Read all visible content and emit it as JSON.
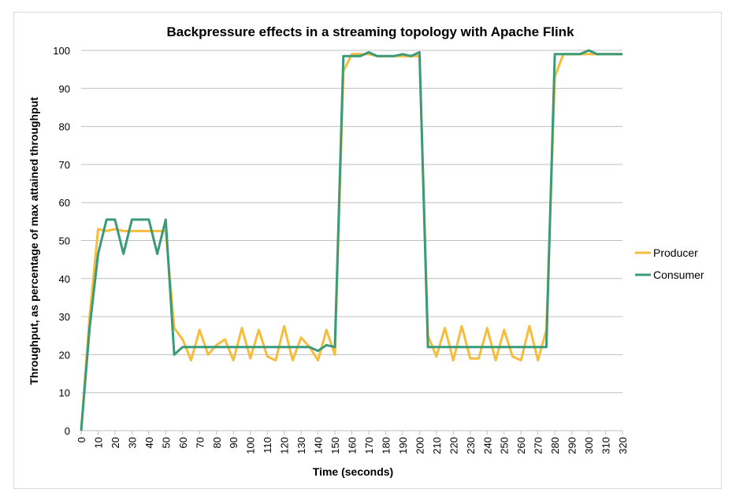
{
  "chart_data": {
    "type": "line",
    "title": "Backpressure effects in a streaming topology with Apache Flink",
    "xlabel": "Time (seconds)",
    "ylabel": "Throughput, as percentage of max attained throughput",
    "xlim": [
      0,
      320
    ],
    "ylim": [
      0,
      100
    ],
    "y_ticks": [
      0,
      10,
      20,
      30,
      40,
      50,
      60,
      70,
      80,
      90,
      100
    ],
    "x_ticks": [
      0,
      10,
      20,
      30,
      40,
      50,
      60,
      70,
      80,
      90,
      100,
      110,
      120,
      130,
      140,
      150,
      160,
      170,
      180,
      190,
      200,
      210,
      220,
      230,
      240,
      250,
      260,
      270,
      280,
      290,
      300,
      310,
      320
    ],
    "grid": "horizontal",
    "legend_position": "right",
    "x": [
      0,
      5,
      10,
      15,
      20,
      25,
      30,
      35,
      40,
      45,
      50,
      55,
      60,
      65,
      70,
      75,
      80,
      85,
      90,
      95,
      100,
      105,
      110,
      115,
      120,
      125,
      130,
      135,
      140,
      145,
      150,
      155,
      160,
      165,
      170,
      175,
      180,
      185,
      190,
      195,
      200,
      205,
      210,
      215,
      220,
      225,
      230,
      235,
      240,
      245,
      250,
      255,
      260,
      265,
      270,
      275,
      280,
      285,
      290,
      295,
      300,
      305,
      310,
      315,
      320
    ],
    "series": [
      {
        "name": "Producer",
        "color": "#f6bd3c",
        "values": [
          0,
          30,
          53,
          52.5,
          53,
          52.5,
          52.5,
          52.5,
          52.5,
          52.5,
          52.5,
          27,
          24,
          18.5,
          26.5,
          20,
          22.5,
          24,
          18.5,
          27,
          19,
          26.5,
          19.5,
          18.5,
          27.5,
          18.5,
          24.5,
          22,
          18.5,
          26.5,
          20,
          94.5,
          99,
          99,
          99,
          98.5,
          98.5,
          98.5,
          98.5,
          98.5,
          98.5,
          25,
          19.5,
          27,
          18.5,
          27.5,
          19,
          19,
          27,
          18.5,
          26.5,
          19.5,
          18.5,
          27.5,
          18.5,
          26.5,
          93,
          99,
          99,
          99,
          99,
          99,
          99,
          99,
          99
        ]
      },
      {
        "name": "Consumer",
        "color": "#3a9a79",
        "values": [
          0,
          27,
          46.5,
          55.5,
          55.5,
          46.5,
          55.5,
          55.5,
          55.5,
          46.5,
          55.5,
          20,
          22,
          22,
          22,
          22,
          22,
          22,
          22,
          22,
          22,
          22,
          22,
          22,
          22,
          22,
          22,
          22,
          21,
          22.5,
          22,
          98.5,
          98.5,
          98.5,
          99.5,
          98.5,
          98.5,
          98.5,
          99,
          98.5,
          99.5,
          22,
          22,
          22,
          22,
          22,
          22,
          22,
          22,
          22,
          22,
          22,
          22,
          22,
          22,
          22,
          99,
          99,
          99,
          99,
          100,
          99,
          99,
          99,
          99
        ]
      }
    ]
  }
}
